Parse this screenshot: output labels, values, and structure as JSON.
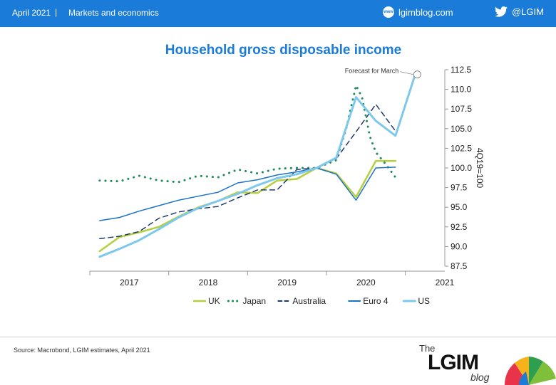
{
  "header": {
    "date": "April 2021",
    "separator": "|",
    "category": "Markets and economics",
    "site": "lgimblog.com",
    "site_icon_text": "www",
    "twitter": "@LGIM"
  },
  "footer": {
    "source": "Source: Macrobond, LGIM estimates, April 2021",
    "logo_the": "The",
    "logo_main": "LGIM",
    "logo_blog": "blog"
  },
  "colors": {
    "uk": "#b6cf3c",
    "japan": "#1d8a5a",
    "australia": "#1f3d6b",
    "euro4": "#1a72c9",
    "us": "#7ec8ec",
    "header": "#1a7bd8"
  },
  "chart_data": {
    "type": "line",
    "title": "Household gross disposable income",
    "ylabel": "4Q19=100",
    "ylim": [
      87.5,
      112.5
    ],
    "yticks": [
      87.5,
      90.0,
      92.5,
      95.0,
      97.5,
      100.0,
      102.5,
      105.0,
      107.5,
      110.0,
      112.5
    ],
    "ytick_labels": [
      "87.5",
      "90.0",
      "92.5",
      "95.0",
      "97.5",
      "100.0",
      "102.5",
      "105.0",
      "107.5",
      "110.0",
      "112.5"
    ],
    "x_categories": [
      "2017",
      "2018",
      "2019",
      "2020",
      "2021"
    ],
    "x_unit": "quarters since 2017-Q1",
    "legend_position": "bottom",
    "annotation": {
      "text": "Forecast for March",
      "x": 16.1,
      "y": 111.9
    },
    "series": [
      {
        "name": "UK",
        "style": "solid",
        "color": "#b6cf3c",
        "width": 2.5,
        "x": [
          0,
          1,
          2,
          3,
          4,
          5,
          6,
          7,
          8,
          9,
          10,
          11,
          12,
          13,
          14,
          15
        ],
        "y": [
          89.4,
          91.2,
          91.8,
          92.5,
          93.8,
          95.0,
          95.8,
          96.9,
          96.8,
          98.4,
          98.6,
          100.0,
          99.3,
          96.3,
          100.9,
          100.9
        ]
      },
      {
        "name": "Japan",
        "style": "dotted",
        "color": "#1d8a5a",
        "width": 2.5,
        "x": [
          0,
          1,
          2,
          3,
          4,
          5,
          6,
          7,
          8,
          9,
          10,
          11,
          12,
          12.5,
          13,
          13.3,
          13.7,
          14,
          14.5,
          15
        ],
        "y": [
          98.4,
          98.3,
          99.0,
          98.4,
          98.2,
          99.0,
          98.8,
          99.8,
          99.3,
          99.9,
          100.0,
          100.0,
          101.0,
          105.0,
          110.5,
          109.0,
          104.0,
          102.0,
          100.5,
          98.8
        ]
      },
      {
        "name": "Australia",
        "style": "dashed",
        "color": "#1f3d6b",
        "width": 1.5,
        "x": [
          0,
          1,
          2,
          3,
          4,
          5,
          6,
          7,
          8,
          9,
          10,
          11,
          12,
          13,
          14,
          15
        ],
        "y": [
          91.0,
          91.3,
          91.9,
          93.6,
          94.4,
          94.8,
          95.1,
          96.2,
          97.2,
          97.2,
          99.8,
          100.0,
          101.2,
          104.6,
          108.1,
          104.7
        ]
      },
      {
        "name": "Euro 4",
        "style": "solid",
        "color": "#1a72c9",
        "width": 1.5,
        "x": [
          0,
          1,
          2,
          3,
          4,
          5,
          6,
          7,
          8,
          9,
          10,
          11,
          12,
          13,
          14,
          15
        ],
        "y": [
          93.3,
          93.7,
          94.5,
          95.2,
          95.9,
          96.4,
          96.9,
          98.1,
          98.5,
          99.1,
          99.5,
          100.0,
          99.2,
          95.9,
          100.0,
          100.1
        ]
      },
      {
        "name": "US",
        "style": "solid",
        "color": "#7ec8ec",
        "width": 3,
        "x": [
          0,
          1,
          2,
          3,
          4,
          5,
          6,
          7,
          8,
          9,
          10,
          11,
          12,
          13,
          14,
          15,
          16
        ],
        "y": [
          88.7,
          89.7,
          90.8,
          92.2,
          93.7,
          94.9,
          95.8,
          96.7,
          97.8,
          98.7,
          99.2,
          100.0,
          101.3,
          109.0,
          106.0,
          104.1,
          111.9
        ]
      }
    ]
  }
}
